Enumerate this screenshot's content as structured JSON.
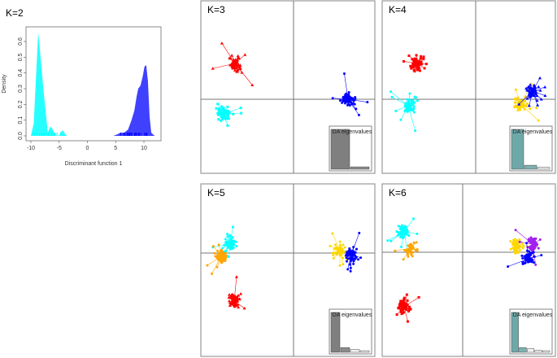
{
  "chart_data": [
    {
      "type": "area",
      "title": "K=2",
      "xlabel": "Discriminant function 1",
      "ylabel": "Density",
      "xlim": [
        -10.5,
        12
      ],
      "ylim": [
        0,
        0.66
      ],
      "xticks": [
        "-10",
        "-5",
        "0",
        "5",
        "10"
      ],
      "yticks": [
        "0.0",
        "0.1",
        "0.2",
        "0.3",
        "0.4",
        "0.5",
        "0.6"
      ],
      "series": [
        {
          "color": "#00ffff",
          "x": [
            -10,
            -9.5,
            -9.0,
            -8.7,
            -8.3,
            -7.8,
            -7.3,
            -7.0,
            -6.8,
            -6.5,
            -6.1,
            -5.8,
            -5.4,
            -4.9,
            -4.6,
            -4.3,
            -4.0,
            -3.6
          ],
          "y": [
            0,
            0.08,
            0.45,
            0.66,
            0.5,
            0.3,
            0.12,
            0.02,
            0.04,
            0.06,
            0.04,
            0.01,
            0.0,
            0.005,
            0.03,
            0.035,
            0.015,
            0
          ]
        },
        {
          "color": "#0000ff",
          "x": [
            4.6,
            5.3,
            5.8,
            6.5,
            7.2,
            7.8,
            8.3,
            8.7,
            9.0,
            9.4,
            9.8,
            10.1,
            10.4,
            10.7,
            11.0,
            11.3,
            11.9
          ],
          "y": [
            0,
            0.01,
            0.02,
            0.02,
            0.04,
            0.1,
            0.16,
            0.25,
            0.3,
            0.32,
            0.38,
            0.44,
            0.45,
            0.35,
            0.12,
            0.02,
            0
          ]
        }
      ],
      "grid": false
    },
    {
      "type": "scatter",
      "title": "K=3",
      "inset_label": "DA eigenvalues",
      "eigenvalues": [
        1.0,
        0.06
      ],
      "eigen_color": "#7f7f7f",
      "clusters": [
        {
          "color": "#ff0000",
          "centroid": [
            -7.2,
            4.4
          ],
          "shape": "triangle"
        },
        {
          "color": "#00ffff",
          "centroid": [
            -8.6,
            -1.8
          ],
          "shape": "square"
        },
        {
          "color": "#0000ff",
          "centroid": [
            6.7,
            0.0
          ],
          "shape": "circle"
        }
      ]
    },
    {
      "type": "scatter",
      "title": "K=4",
      "inset_label": "DA eigenvalues",
      "eigenvalues": [
        1.0,
        0.1,
        0.05
      ],
      "eigen_color": "#6fa8a8",
      "clusters": [
        {
          "color": "#ff0000",
          "centroid": [
            -7.2,
            4.4
          ],
          "shape": "square"
        },
        {
          "color": "#00ffff",
          "centroid": [
            -8.3,
            -0.8
          ],
          "shape": "circle"
        },
        {
          "color": "#ffd700",
          "centroid": [
            5.5,
            -0.6
          ],
          "shape": "circle"
        },
        {
          "color": "#0000ff",
          "centroid": [
            7.0,
            1.0
          ],
          "shape": "triangle"
        }
      ]
    },
    {
      "type": "scatter",
      "title": "K=5",
      "inset_label": "DA eigenvalues",
      "eigenvalues": [
        1.0,
        0.12,
        0.07,
        0.04
      ],
      "eigen_color": "#7f7f7f",
      "clusters": [
        {
          "color": "#00ffff",
          "centroid": [
            -7.8,
            1.1
          ],
          "shape": "circle"
        },
        {
          "color": "#ffa500",
          "centroid": [
            -8.9,
            -0.4
          ],
          "shape": "circle"
        },
        {
          "color": "#ff0000",
          "centroid": [
            -7.3,
            -5.9
          ],
          "shape": "triangle"
        },
        {
          "color": "#ffd700",
          "centroid": [
            5.7,
            0.4
          ],
          "shape": "circle"
        },
        {
          "color": "#0000ff",
          "centroid": [
            7.1,
            -0.2
          ],
          "shape": "circle"
        }
      ]
    },
    {
      "type": "scatter",
      "title": "K=6",
      "inset_label": "DA eigenvalues",
      "eigenvalues": [
        1.0,
        0.12,
        0.09,
        0.05,
        0.04
      ],
      "eigen_color": "#6fa8a8",
      "clusters": [
        {
          "color": "#00ffff",
          "centroid": [
            -7.2,
            2.5
          ],
          "shape": "circle"
        },
        {
          "color": "#ffa500",
          "centroid": [
            -6.4,
            0.5
          ],
          "shape": "circle"
        },
        {
          "color": "#ff0000",
          "centroid": [
            -7.2,
            -6.7
          ],
          "shape": "square"
        },
        {
          "color": "#ffd700",
          "centroid": [
            6.6,
            0.8
          ],
          "shape": "circle"
        },
        {
          "color": "#a020f0",
          "centroid": [
            8.6,
            1.0
          ],
          "shape": "circle"
        },
        {
          "color": "#0000ff",
          "centroid": [
            8.1,
            -0.8
          ],
          "shape": "circle"
        }
      ]
    }
  ]
}
